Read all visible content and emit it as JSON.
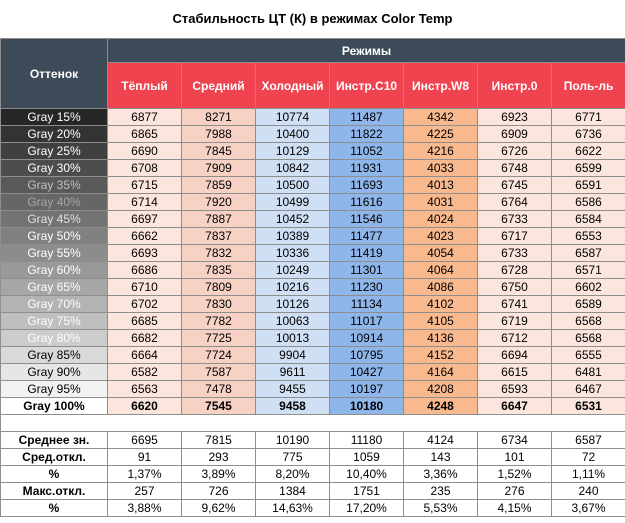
{
  "title": "Стабильность ЦТ (К) в режимах Color Temp",
  "header": {
    "shade_label": "Оттенок",
    "modes_label": "Режимы",
    "columns": [
      "Тёплый",
      "Средний",
      "Холодный",
      "Инстр.С10",
      "Инстр.W8",
      "Инстр.0",
      "Поль-ль"
    ]
  },
  "rows": [
    {
      "label": "Gray 15%",
      "bg": "#262626",
      "fg": "#ffffff",
      "values": [
        "6877",
        "8271",
        "10774",
        "11487",
        "4342",
        "6923",
        "6771"
      ]
    },
    {
      "label": "Gray 20%",
      "bg": "#333333",
      "fg": "#ffffff",
      "values": [
        "6865",
        "7988",
        "10400",
        "11822",
        "4225",
        "6909",
        "6736"
      ]
    },
    {
      "label": "Gray 25%",
      "bg": "#404040",
      "fg": "#ffffff",
      "values": [
        "6690",
        "7845",
        "10129",
        "11052",
        "4216",
        "6726",
        "6622"
      ]
    },
    {
      "label": "Gray 30%",
      "bg": "#4d4d4d",
      "fg": "#ffffff",
      "values": [
        "6708",
        "7909",
        "10842",
        "11931",
        "4033",
        "6748",
        "6599"
      ]
    },
    {
      "label": "Gray 35%",
      "bg": "#595959",
      "fg": "#bfbfbf",
      "values": [
        "6715",
        "7859",
        "10500",
        "11693",
        "4013",
        "6745",
        "6591"
      ]
    },
    {
      "label": "Gray 40%",
      "bg": "#666666",
      "fg": "#a6a6a6",
      "values": [
        "6714",
        "7920",
        "10499",
        "11616",
        "4031",
        "6764",
        "6586"
      ]
    },
    {
      "label": "Gray 45%",
      "bg": "#737373",
      "fg": "#e0e0e0",
      "values": [
        "6697",
        "7887",
        "10452",
        "11546",
        "4024",
        "6733",
        "6584"
      ]
    },
    {
      "label": "Gray 50%",
      "bg": "#808080",
      "fg": "#ffffff",
      "values": [
        "6662",
        "7837",
        "10389",
        "11477",
        "4023",
        "6717",
        "6553"
      ]
    },
    {
      "label": "Gray 55%",
      "bg": "#8c8c8c",
      "fg": "#ffffff",
      "values": [
        "6693",
        "7832",
        "10336",
        "11419",
        "4054",
        "6733",
        "6587"
      ]
    },
    {
      "label": "Gray 60%",
      "bg": "#999999",
      "fg": "#ffffff",
      "values": [
        "6686",
        "7835",
        "10249",
        "11301",
        "4064",
        "6728",
        "6571"
      ]
    },
    {
      "label": "Gray 65%",
      "bg": "#a6a6a6",
      "fg": "#ffffff",
      "values": [
        "6710",
        "7809",
        "10216",
        "11230",
        "4086",
        "6750",
        "6602"
      ]
    },
    {
      "label": "Gray 70%",
      "bg": "#b3b3b3",
      "fg": "#ffffff",
      "values": [
        "6702",
        "7830",
        "10126",
        "11134",
        "4102",
        "6741",
        "6589"
      ]
    },
    {
      "label": "Gray 75%",
      "bg": "#bfbfbf",
      "fg": "#ffffff",
      "values": [
        "6685",
        "7782",
        "10063",
        "11017",
        "4105",
        "6719",
        "6568"
      ]
    },
    {
      "label": "Gray 80%",
      "bg": "#cccccc",
      "fg": "#ffffff",
      "values": [
        "6682",
        "7725",
        "10013",
        "10914",
        "4136",
        "6712",
        "6568"
      ]
    },
    {
      "label": "Gray 85%",
      "bg": "#d9d9d9",
      "fg": "#000000",
      "values": [
        "6664",
        "7724",
        "9904",
        "10795",
        "4152",
        "6694",
        "6555"
      ]
    },
    {
      "label": "Gray 90%",
      "bg": "#e6e6e6",
      "fg": "#000000",
      "values": [
        "6582",
        "7587",
        "9611",
        "10427",
        "4164",
        "6615",
        "6481"
      ]
    },
    {
      "label": "Gray 95%",
      "bg": "#f2f2f2",
      "fg": "#000000",
      "values": [
        "6563",
        "7478",
        "9455",
        "10197",
        "4208",
        "6593",
        "6467"
      ]
    },
    {
      "label": "Gray 100%",
      "bg": "#ffffff",
      "fg": "#000000",
      "bold": true,
      "values": [
        "6620",
        "7545",
        "9458",
        "10180",
        "4248",
        "6647",
        "6531"
      ]
    }
  ],
  "stats": [
    {
      "label": "Среднее зн.",
      "values": [
        "6695",
        "7815",
        "10190",
        "11180",
        "4124",
        "6734",
        "6587"
      ]
    },
    {
      "label": "Сред.откл.",
      "values": [
        "91",
        "293",
        "775",
        "1059",
        "143",
        "101",
        "72"
      ]
    },
    {
      "label": "%",
      "values": [
        "1,37%",
        "3,89%",
        "8,20%",
        "10,40%",
        "3,36%",
        "1,52%",
        "1,11%"
      ]
    },
    {
      "label": "Макс.откл.",
      "values": [
        "257",
        "726",
        "1384",
        "1751",
        "235",
        "276",
        "240"
      ]
    },
    {
      "label": "%",
      "values": [
        "3,88%",
        "9,62%",
        "14,63%",
        "17,20%",
        "5,53%",
        "4,15%",
        "3,67%"
      ]
    }
  ],
  "colors": {
    "header_dark": "#3d4a58",
    "header_red": "#ef4450",
    "warm": "#fce5dc",
    "cold": "#cfdff4",
    "c10": "#8fb6ea",
    "w8": "#f9b98e"
  }
}
